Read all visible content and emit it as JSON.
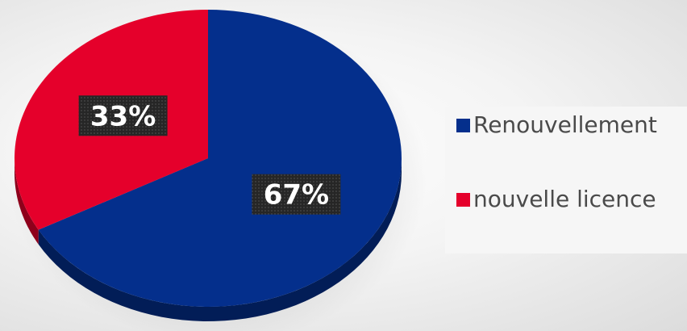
{
  "chart_data": {
    "type": "pie",
    "categories": [
      "Renouvellement",
      "nouvelle licence"
    ],
    "values": [
      67,
      33
    ],
    "labels": [
      "67%",
      "33%"
    ],
    "colors": [
      "#042f8c",
      "#e5002b"
    ],
    "title": "",
    "legend_position": "right",
    "style": "3d"
  }
}
